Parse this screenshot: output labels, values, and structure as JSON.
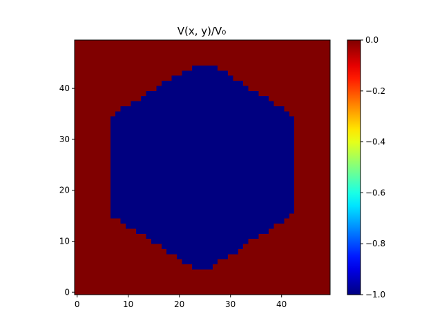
{
  "chart_data": {
    "type": "heatmap",
    "title": "V(x, y)/V₀",
    "xlabel": "",
    "ylabel": "",
    "xlim": [
      -0.5,
      49.5
    ],
    "ylim": [
      -0.5,
      49.5
    ],
    "x_ticks": [
      0,
      10,
      20,
      30,
      40
    ],
    "y_ticks": [
      0,
      10,
      20,
      30,
      40
    ],
    "grid": false,
    "colormap": "jet",
    "colorbar": {
      "vmin": -1.0,
      "vmax": 0.0,
      "ticks": [
        -1.0,
        -0.8,
        -0.6,
        -0.4,
        -0.2,
        0.0
      ],
      "tick_labels": [
        "−1.0",
        "−0.8",
        "−0.6",
        "−0.4",
        "−0.2",
        "0.0"
      ]
    },
    "grid_size": [
      50,
      50
    ],
    "background_value": 0.0,
    "region_value": -1.0,
    "region_shape": "hexagon",
    "region_rows": [
      {
        "y": 5,
        "x0": 23,
        "x1": 26
      },
      {
        "y": 6,
        "x0": 21,
        "x1": 27
      },
      {
        "y": 7,
        "x0": 20,
        "x1": 29
      },
      {
        "y": 8,
        "x0": 18,
        "x1": 31
      },
      {
        "y": 9,
        "x0": 17,
        "x1": 32
      },
      {
        "y": 10,
        "x0": 15,
        "x1": 33
      },
      {
        "y": 11,
        "x0": 14,
        "x1": 35
      },
      {
        "y": 12,
        "x0": 12,
        "x1": 37
      },
      {
        "y": 13,
        "x0": 10,
        "x1": 38
      },
      {
        "y": 14,
        "x0": 9,
        "x1": 40
      },
      {
        "y": 15,
        "x0": 7,
        "x1": 41
      },
      {
        "y": 16,
        "x0": 7,
        "x1": 42
      },
      {
        "y": 17,
        "x0": 7,
        "x1": 42
      },
      {
        "y": 18,
        "x0": 7,
        "x1": 42
      },
      {
        "y": 19,
        "x0": 7,
        "x1": 42
      },
      {
        "y": 20,
        "x0": 7,
        "x1": 42
      },
      {
        "y": 21,
        "x0": 7,
        "x1": 42
      },
      {
        "y": 22,
        "x0": 7,
        "x1": 42
      },
      {
        "y": 23,
        "x0": 7,
        "x1": 42
      },
      {
        "y": 24,
        "x0": 7,
        "x1": 42
      },
      {
        "y": 25,
        "x0": 7,
        "x1": 42
      },
      {
        "y": 26,
        "x0": 7,
        "x1": 42
      },
      {
        "y": 27,
        "x0": 7,
        "x1": 42
      },
      {
        "y": 28,
        "x0": 7,
        "x1": 42
      },
      {
        "y": 29,
        "x0": 7,
        "x1": 42
      },
      {
        "y": 30,
        "x0": 7,
        "x1": 42
      },
      {
        "y": 31,
        "x0": 7,
        "x1": 42
      },
      {
        "y": 32,
        "x0": 7,
        "x1": 42
      },
      {
        "y": 33,
        "x0": 7,
        "x1": 42
      },
      {
        "y": 34,
        "x0": 7,
        "x1": 42
      },
      {
        "y": 35,
        "x0": 8,
        "x1": 41
      },
      {
        "y": 36,
        "x0": 9,
        "x1": 40
      },
      {
        "y": 37,
        "x0": 11,
        "x1": 38
      },
      {
        "y": 38,
        "x0": 13,
        "x1": 37
      },
      {
        "y": 39,
        "x0": 14,
        "x1": 35
      },
      {
        "y": 40,
        "x0": 16,
        "x1": 33
      },
      {
        "y": 41,
        "x0": 17,
        "x1": 32
      },
      {
        "y": 42,
        "x0": 19,
        "x1": 30
      },
      {
        "y": 43,
        "x0": 21,
        "x1": 29
      },
      {
        "y": 44,
        "x0": 23,
        "x1": 27
      }
    ]
  }
}
